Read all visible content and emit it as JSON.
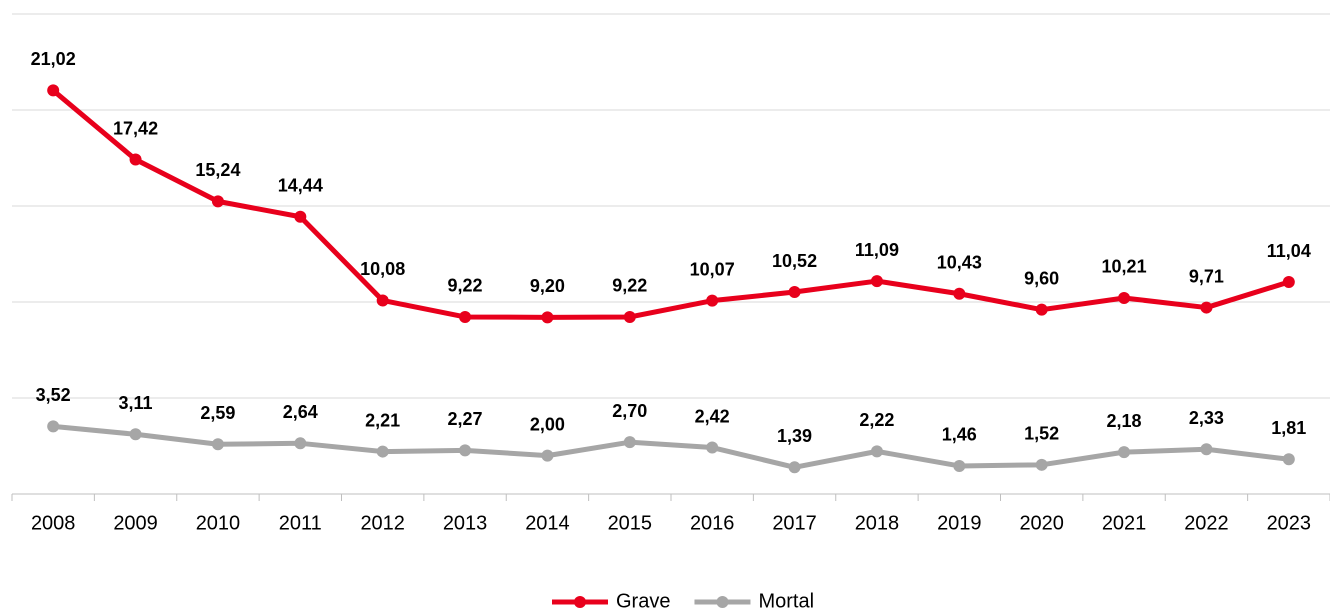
{
  "chart_data": {
    "type": "line",
    "categories": [
      "2008",
      "2009",
      "2010",
      "2011",
      "2012",
      "2013",
      "2014",
      "2015",
      "2016",
      "2017",
      "2018",
      "2019",
      "2020",
      "2021",
      "2022",
      "2023"
    ],
    "series": [
      {
        "name": "Grave",
        "color": "#e8001c",
        "values": [
          21.02,
          17.42,
          15.24,
          14.44,
          10.08,
          9.22,
          9.2,
          9.22,
          10.07,
          10.52,
          11.09,
          10.43,
          9.6,
          10.21,
          9.71,
          11.04
        ],
        "value_labels": [
          "21,02",
          "17,42",
          "15,24",
          "14,44",
          "10,08",
          "9,22",
          "9,20",
          "9,22",
          "10,07",
          "10,52",
          "11,09",
          "10,43",
          "9,60",
          "10,21",
          "9,71",
          "11,04"
        ]
      },
      {
        "name": "Mortal",
        "color": "#a6a6a6",
        "values": [
          3.52,
          3.11,
          2.59,
          2.64,
          2.21,
          2.27,
          2.0,
          2.7,
          2.42,
          1.39,
          2.22,
          1.46,
          1.52,
          2.18,
          2.33,
          1.81
        ],
        "value_labels": [
          "3,52",
          "3,11",
          "2,59",
          "2,64",
          "2,21",
          "2,27",
          "2,00",
          "2,70",
          "2,42",
          "1,39",
          "2,22",
          "1,46",
          "1,52",
          "2,18",
          "2,33",
          "1,81"
        ]
      }
    ],
    "ylim": [
      0,
      25
    ],
    "yticks": [
      0,
      5,
      10,
      15,
      20,
      25
    ],
    "grid": true,
    "legend": "bottom"
  }
}
